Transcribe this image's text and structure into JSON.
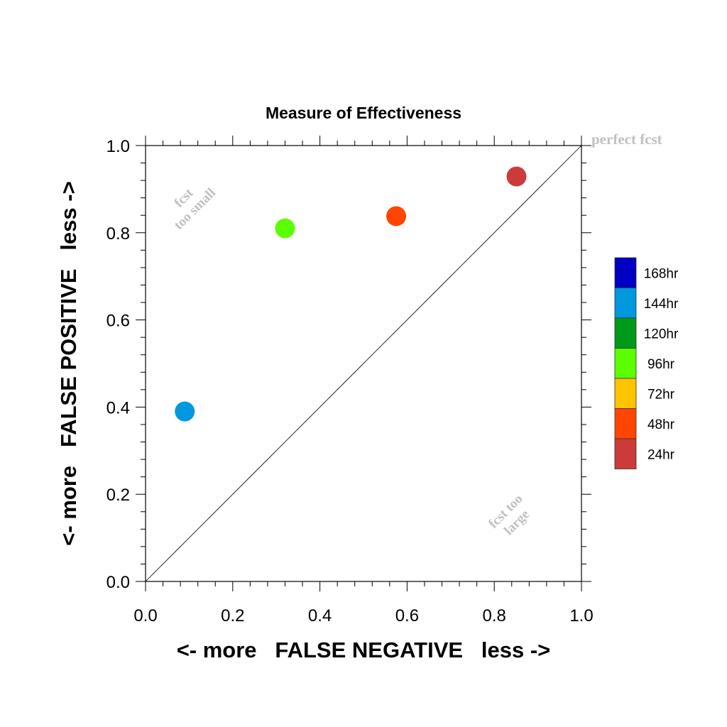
{
  "chart_data": {
    "type": "scatter",
    "title": "Measure of Effectiveness",
    "xlabel": "<- more   FALSE NEGATIVE   less ->",
    "ylabel": "<- more   FALSE POSITIVE   less ->",
    "xlim": [
      0.0,
      1.0
    ],
    "ylim": [
      0.0,
      1.0
    ],
    "x_ticks": [
      "0.0",
      "0.2",
      "0.4",
      "0.6",
      "0.8",
      "1.0"
    ],
    "y_ticks": [
      "0.0",
      "0.2",
      "0.4",
      "0.6",
      "0.8",
      "1.0"
    ],
    "grid": false,
    "diagonal_line": true,
    "annotations": {
      "perfect": "perfect fcst",
      "too_small_line1": "fcst",
      "too_small_line2": "too small",
      "too_large_line1": "fcst too",
      "too_large_line2": "large"
    },
    "legend": {
      "placement": "right",
      "entries": [
        {
          "label": "168hr",
          "color": "#0000c4"
        },
        {
          "label": "144hr",
          "color": "#0098de"
        },
        {
          "label": "120hr",
          "color": "#009a1a"
        },
        {
          "label": "96hr",
          "color": "#5cff00"
        },
        {
          "label": "72hr",
          "color": "#ffc400"
        },
        {
          "label": "48hr",
          "color": "#ff4500"
        },
        {
          "label": "24hr",
          "color": "#cc3a3a"
        }
      ]
    },
    "points": [
      {
        "series": "144hr",
        "x": 0.09,
        "y": 0.39,
        "color": "#0098de"
      },
      {
        "series": "96hr",
        "x": 0.32,
        "y": 0.81,
        "color": "#5cff00"
      },
      {
        "series": "48hr",
        "x": 0.575,
        "y": 0.838,
        "color": "#ff4500"
      },
      {
        "series": "24hr",
        "x": 0.851,
        "y": 0.929,
        "color": "#cc3a3a"
      }
    ]
  }
}
